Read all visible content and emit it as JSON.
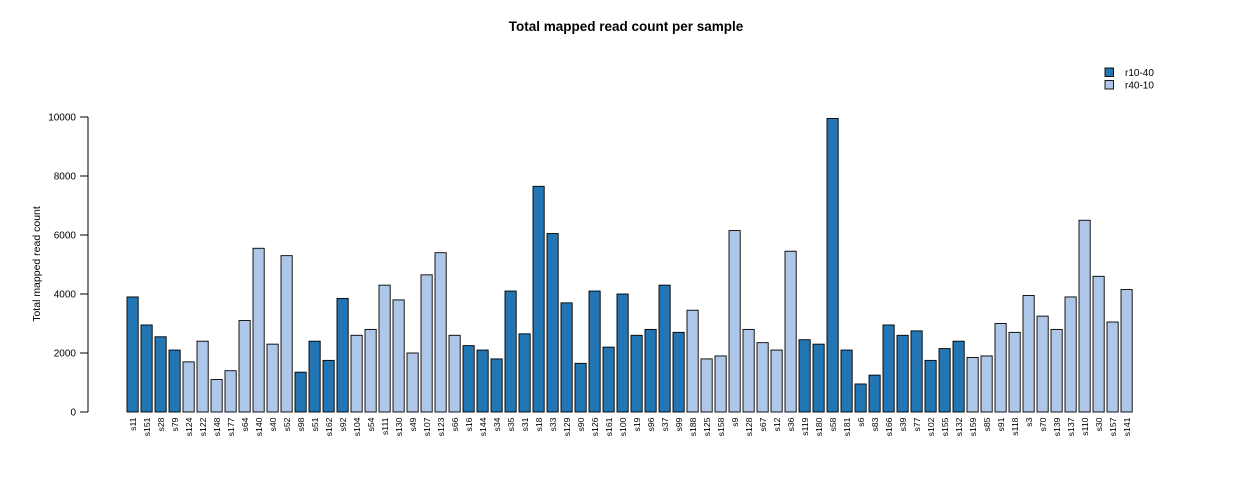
{
  "chart_data": {
    "type": "bar",
    "title": "Total mapped read count per sample",
    "xlabel": "",
    "ylabel": "Total mapped read count",
    "ylim": [
      0,
      10000
    ],
    "yticks": [
      0,
      2000,
      4000,
      6000,
      8000,
      10000
    ],
    "grid": false,
    "legend_position": "top-right",
    "legend": [
      {
        "label": "r10-40",
        "color": "#2276B4"
      },
      {
        "label": "r40-10",
        "color": "#AEC7E8"
      }
    ],
    "categories": [
      "s11",
      "s151",
      "s28",
      "s79",
      "s124",
      "s122",
      "s148",
      "s177",
      "s64",
      "s140",
      "s40",
      "s52",
      "s98",
      "s51",
      "s162",
      "s92",
      "s104",
      "s54",
      "s111",
      "s130",
      "s49",
      "s107",
      "s123",
      "s66",
      "s16",
      "s144",
      "s34",
      "s35",
      "s31",
      "s18",
      "s33",
      "s129",
      "s90",
      "s126",
      "s161",
      "s100",
      "s19",
      "s96",
      "s37",
      "s99",
      "s188",
      "s125",
      "s158",
      "s9",
      "s128",
      "s67",
      "s12",
      "s36",
      "s119",
      "s180",
      "s58",
      "s181",
      "s6",
      "s83",
      "s166",
      "s39",
      "s77",
      "s102",
      "s155",
      "s132",
      "s159",
      "s85",
      "s91",
      "s118",
      "s3",
      "s70",
      "s139",
      "s137",
      "s110",
      "s30",
      "s157",
      "s141"
    ],
    "values": [
      3900,
      2950,
      2550,
      2100,
      1700,
      2400,
      1100,
      1400,
      3100,
      5550,
      2300,
      5300,
      1350,
      2400,
      1750,
      3850,
      2600,
      2800,
      4300,
      3800,
      2000,
      4650,
      5400,
      2600,
      2250,
      2100,
      1800,
      4100,
      2650,
      7650,
      6050,
      3700,
      1650,
      4100,
      2200,
      4000,
      2600,
      2800,
      4300,
      2700,
      3450,
      1800,
      1900,
      6150,
      2800,
      2350,
      2100,
      5450,
      2450,
      2300,
      9950,
      2100,
      950,
      1250,
      2950,
      2600,
      2750,
      1750,
      2150,
      2400,
      1850,
      1900,
      3000,
      2700,
      3950,
      3250,
      2800,
      3900,
      6500,
      4600,
      3050,
      4150
    ],
    "groups": [
      "r10-40",
      "r10-40",
      "r10-40",
      "r10-40",
      "r40-10",
      "r40-10",
      "r40-10",
      "r40-10",
      "r40-10",
      "r40-10",
      "r40-10",
      "r40-10",
      "r10-40",
      "r10-40",
      "r10-40",
      "r10-40",
      "r40-10",
      "r40-10",
      "r40-10",
      "r40-10",
      "r40-10",
      "r40-10",
      "r40-10",
      "r40-10",
      "r10-40",
      "r10-40",
      "r10-40",
      "r10-40",
      "r10-40",
      "r10-40",
      "r10-40",
      "r10-40",
      "r10-40",
      "r10-40",
      "r10-40",
      "r10-40",
      "r10-40",
      "r10-40",
      "r10-40",
      "r10-40",
      "r40-10",
      "r40-10",
      "r40-10",
      "r40-10",
      "r40-10",
      "r40-10",
      "r40-10",
      "r40-10",
      "r10-40",
      "r10-40",
      "r10-40",
      "r10-40",
      "r10-40",
      "r10-40",
      "r10-40",
      "r10-40",
      "r10-40",
      "r10-40",
      "r10-40",
      "r10-40",
      "r40-10",
      "r40-10",
      "r40-10",
      "r40-10",
      "r40-10",
      "r40-10",
      "r40-10",
      "r40-10",
      "r40-10",
      "r40-10",
      "r40-10",
      "r40-10"
    ]
  },
  "colors": {
    "bar_dark": "#2276B4",
    "bar_light": "#AEC7E8",
    "axis": "#000000",
    "background": "#FFFFFF"
  }
}
